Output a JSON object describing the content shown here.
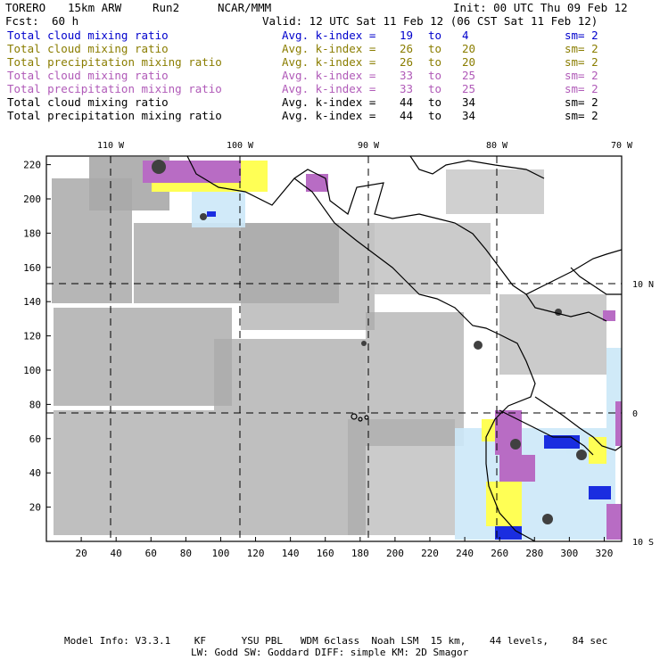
{
  "header": {
    "model": "TORERO",
    "resolution": "15km ARW",
    "run": "Run2",
    "org": "NCAR/MMM",
    "init": "Init: 00 UTC Thu 09 Feb 12",
    "fcst_label": "Fcst:",
    "fcst_value": "60 h",
    "valid": "Valid: 12 UTC Sat 11 Feb 12 (06 CST Sat 11 Feb 12)"
  },
  "legend": [
    {
      "field": "Total cloud mixing ratio",
      "avg": "Avg. k-index =",
      "from": "19",
      "to_word": "to",
      "to": "4",
      "sm": "sm= 2",
      "color": "#0000cc"
    },
    {
      "field": "Total cloud mixing ratio",
      "avg": "Avg. k-index =",
      "from": "26",
      "to_word": "to",
      "to": "20",
      "sm": "sm= 2",
      "color": "#8a7d00"
    },
    {
      "field": "Total precipitation mixing ratio",
      "avg": "Avg. k-index =",
      "from": "26",
      "to_word": "to",
      "to": "20",
      "sm": "sm= 2",
      "color": "#8a7d00"
    },
    {
      "field": "Total cloud mixing ratio",
      "avg": "Avg. k-index =",
      "from": "33",
      "to_word": "to",
      "to": "25",
      "sm": "sm= 2",
      "color": "#b05ab8"
    },
    {
      "field": "Total precipitation mixing ratio",
      "avg": "Avg. k-index =",
      "from": "33",
      "to_word": "to",
      "to": "25",
      "sm": "sm= 2",
      "color": "#b05ab8"
    },
    {
      "field": "Total cloud mixing ratio",
      "avg": "Avg. k-index =",
      "from": "44",
      "to_word": "to",
      "to": "34",
      "sm": "sm= 2",
      "color": "#000000"
    },
    {
      "field": "Total precipitation mixing ratio",
      "avg": "Avg. k-index =",
      "from": "44",
      "to_word": "to",
      "to": "34",
      "sm": "sm= 2",
      "color": "#000000"
    }
  ],
  "map": {
    "lon_labels": [
      "110 W",
      "100 W",
      "90 W",
      "80 W",
      "70 W"
    ],
    "lat_labels": [
      "10 N",
      "0",
      "10 S"
    ],
    "x_ticks": [
      "20",
      "40",
      "60",
      "80",
      "100",
      "120",
      "140",
      "160",
      "180",
      "200",
      "220",
      "240",
      "260",
      "280",
      "300",
      "320"
    ],
    "y_ticks": [
      "220",
      "200",
      "180",
      "160",
      "140",
      "120",
      "100",
      "80",
      "60",
      "40",
      "20"
    ]
  },
  "footer": {
    "line1": "Model Info: V3.3.1    KF      YSU PBL   WDM 6class  Noah LSM  15 km,    44 levels,    84 sec",
    "line2": "LW: Godd SW: Goddard DIFF: simple KM: 2D Smagor"
  }
}
